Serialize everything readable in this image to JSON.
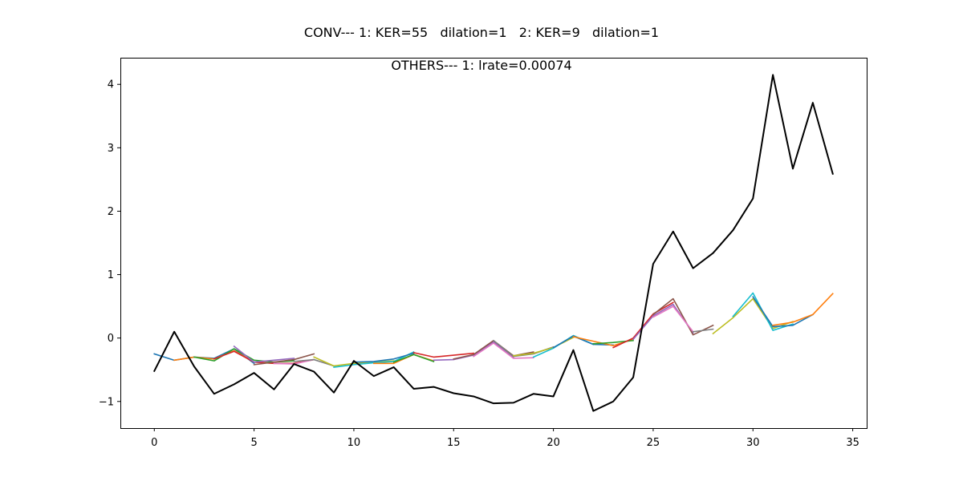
{
  "chart_data": {
    "type": "line",
    "title": "CONV--- 1: KER=55   dilation=1   2: KER=9   dilation=1",
    "subtitle": "OTHERS--- 1: lrate=0.00074",
    "xlabel": "",
    "ylabel": "",
    "xlim": [
      -1.7,
      35.7
    ],
    "ylim": [
      -1.42,
      4.42
    ],
    "xticks": [
      0,
      5,
      10,
      15,
      20,
      25,
      30,
      35
    ],
    "yticks": [
      -1,
      0,
      1,
      2,
      3,
      4
    ],
    "grid": false,
    "actual": {
      "color": "#000000",
      "x": [
        0,
        1,
        2,
        3,
        4,
        5,
        6,
        7,
        8,
        9,
        10,
        11,
        12,
        13,
        14,
        15,
        16,
        17,
        18,
        19,
        20,
        21,
        22,
        23,
        24,
        25,
        26,
        27,
        28,
        29,
        30,
        31,
        32,
        33,
        34
      ],
      "y": [
        -0.52,
        0.1,
        -0.45,
        -0.88,
        -0.73,
        -0.55,
        -0.81,
        -0.41,
        -0.53,
        -0.86,
        -0.36,
        -0.6,
        -0.46,
        -0.8,
        -0.77,
        -0.87,
        -0.92,
        -1.03,
        -1.02,
        -0.88,
        -0.92,
        -0.19,
        -1.15,
        -1.0,
        -0.62,
        1.17,
        1.68,
        1.1,
        1.34,
        1.7,
        2.2,
        4.15,
        2.67,
        3.71,
        2.59
      ]
    },
    "series": [
      {
        "color": "#1f77b4",
        "x": [
          0,
          1,
          2,
          3,
          4,
          5
        ],
        "y": [
          -0.25,
          -0.35,
          -0.3,
          -0.32,
          -0.17,
          -0.4
        ]
      },
      {
        "color": "#ff7f0e",
        "x": [
          1,
          2,
          3,
          4,
          5,
          6
        ],
        "y": [
          -0.35,
          -0.3,
          -0.33,
          -0.2,
          -0.38,
          -0.4
        ]
      },
      {
        "color": "#2ca02c",
        "x": [
          2,
          3,
          4,
          5,
          6,
          7
        ],
        "y": [
          -0.3,
          -0.36,
          -0.17,
          -0.35,
          -0.38,
          -0.36
        ]
      },
      {
        "color": "#d62728",
        "x": [
          3,
          4,
          5,
          6,
          7,
          8
        ],
        "y": [
          -0.33,
          -0.21,
          -0.38,
          -0.4,
          -0.4,
          -0.34
        ]
      },
      {
        "color": "#9467bd",
        "x": [
          4,
          5,
          6,
          7
        ],
        "y": [
          -0.13,
          -0.38,
          -0.35,
          -0.32
        ]
      },
      {
        "color": "#8c564b",
        "x": [
          5,
          6,
          7,
          8
        ],
        "y": [
          -0.42,
          -0.38,
          -0.34,
          -0.25
        ]
      },
      {
        "color": "#e377c2",
        "x": [
          6,
          7,
          8
        ],
        "y": [
          -0.4,
          -0.41,
          -0.34
        ]
      },
      {
        "color": "#7f7f7f",
        "x": [
          7,
          8,
          9
        ],
        "y": [
          -0.37,
          -0.34,
          -0.44
        ]
      },
      {
        "color": "#bcbd22",
        "x": [
          8,
          9,
          10,
          11,
          12
        ],
        "y": [
          -0.3,
          -0.44,
          -0.4,
          -0.38,
          -0.36
        ]
      },
      {
        "color": "#17becf",
        "x": [
          9,
          10,
          11,
          12,
          13
        ],
        "y": [
          -0.46,
          -0.42,
          -0.39,
          -0.37,
          -0.22
        ]
      },
      {
        "color": "#1f77b4",
        "x": [
          10,
          11,
          12,
          13
        ],
        "y": [
          -0.38,
          -0.37,
          -0.33,
          -0.24
        ]
      },
      {
        "color": "#ff7f0e",
        "x": [
          11,
          12,
          13,
          14
        ],
        "y": [
          -0.4,
          -0.4,
          -0.26,
          -0.36
        ]
      },
      {
        "color": "#2ca02c",
        "x": [
          12,
          13,
          14
        ],
        "y": [
          -0.38,
          -0.26,
          -0.37
        ]
      },
      {
        "color": "#d62728",
        "x": [
          13,
          14,
          15,
          16
        ],
        "y": [
          -0.23,
          -0.3,
          -0.27,
          -0.24
        ]
      },
      {
        "color": "#9467bd",
        "x": [
          14,
          15,
          16,
          17,
          18
        ],
        "y": [
          -0.35,
          -0.34,
          -0.27,
          -0.06,
          -0.31
        ]
      },
      {
        "color": "#8c564b",
        "x": [
          15,
          16,
          17,
          18,
          19
        ],
        "y": [
          -0.33,
          -0.26,
          -0.04,
          -0.28,
          -0.22
        ]
      },
      {
        "color": "#e377c2",
        "x": [
          16,
          17,
          18,
          19
        ],
        "y": [
          -0.29,
          -0.08,
          -0.32,
          -0.31
        ]
      },
      {
        "color": "#7f7f7f",
        "x": [
          17,
          18,
          19,
          20
        ],
        "y": [
          -0.04,
          -0.29,
          -0.25,
          -0.14
        ]
      },
      {
        "color": "#bcbd22",
        "x": [
          18,
          19,
          20,
          21
        ],
        "y": [
          -0.28,
          -0.24,
          -0.15,
          0.01
        ]
      },
      {
        "color": "#17becf",
        "x": [
          19,
          20,
          21,
          22
        ],
        "y": [
          -0.3,
          -0.16,
          0.04,
          -0.1
        ]
      },
      {
        "color": "#1f77b4",
        "x": [
          20,
          21,
          22,
          23
        ],
        "y": [
          -0.15,
          0.03,
          -0.1,
          -0.11
        ]
      },
      {
        "color": "#ff7f0e",
        "x": [
          21,
          22,
          23,
          24
        ],
        "y": [
          0.02,
          -0.05,
          -0.12,
          -0.02
        ]
      },
      {
        "color": "#2ca02c",
        "x": [
          22,
          23,
          24
        ],
        "y": [
          -0.09,
          -0.07,
          -0.04
        ]
      },
      {
        "color": "#d62728",
        "x": [
          23,
          24,
          25,
          26
        ],
        "y": [
          -0.15,
          0.0,
          0.38,
          0.56
        ]
      },
      {
        "color": "#9467bd",
        "x": [
          24,
          25,
          26,
          27
        ],
        "y": [
          -0.02,
          0.35,
          0.53,
          0.08
        ]
      },
      {
        "color": "#8c564b",
        "x": [
          25,
          26,
          27,
          28
        ],
        "y": [
          0.37,
          0.62,
          0.05,
          0.2
        ]
      },
      {
        "color": "#e377c2",
        "x": [
          25,
          26,
          27
        ],
        "y": [
          0.33,
          0.5,
          0.1
        ]
      },
      {
        "color": "#7f7f7f",
        "x": [
          27,
          28
        ],
        "y": [
          0.1,
          0.14
        ]
      },
      {
        "color": "#bcbd22",
        "x": [
          28,
          29,
          30,
          31,
          32
        ],
        "y": [
          0.07,
          0.32,
          0.62,
          0.15,
          0.26
        ]
      },
      {
        "color": "#17becf",
        "x": [
          29,
          30,
          31,
          32
        ],
        "y": [
          0.34,
          0.71,
          0.12,
          0.22
        ]
      },
      {
        "color": "#1f77b4",
        "x": [
          30,
          31,
          32,
          33
        ],
        "y": [
          0.65,
          0.18,
          0.2,
          0.37
        ]
      },
      {
        "color": "#ff7f0e",
        "x": [
          31,
          32,
          33,
          34
        ],
        "y": [
          0.2,
          0.25,
          0.37,
          0.7
        ]
      }
    ]
  }
}
